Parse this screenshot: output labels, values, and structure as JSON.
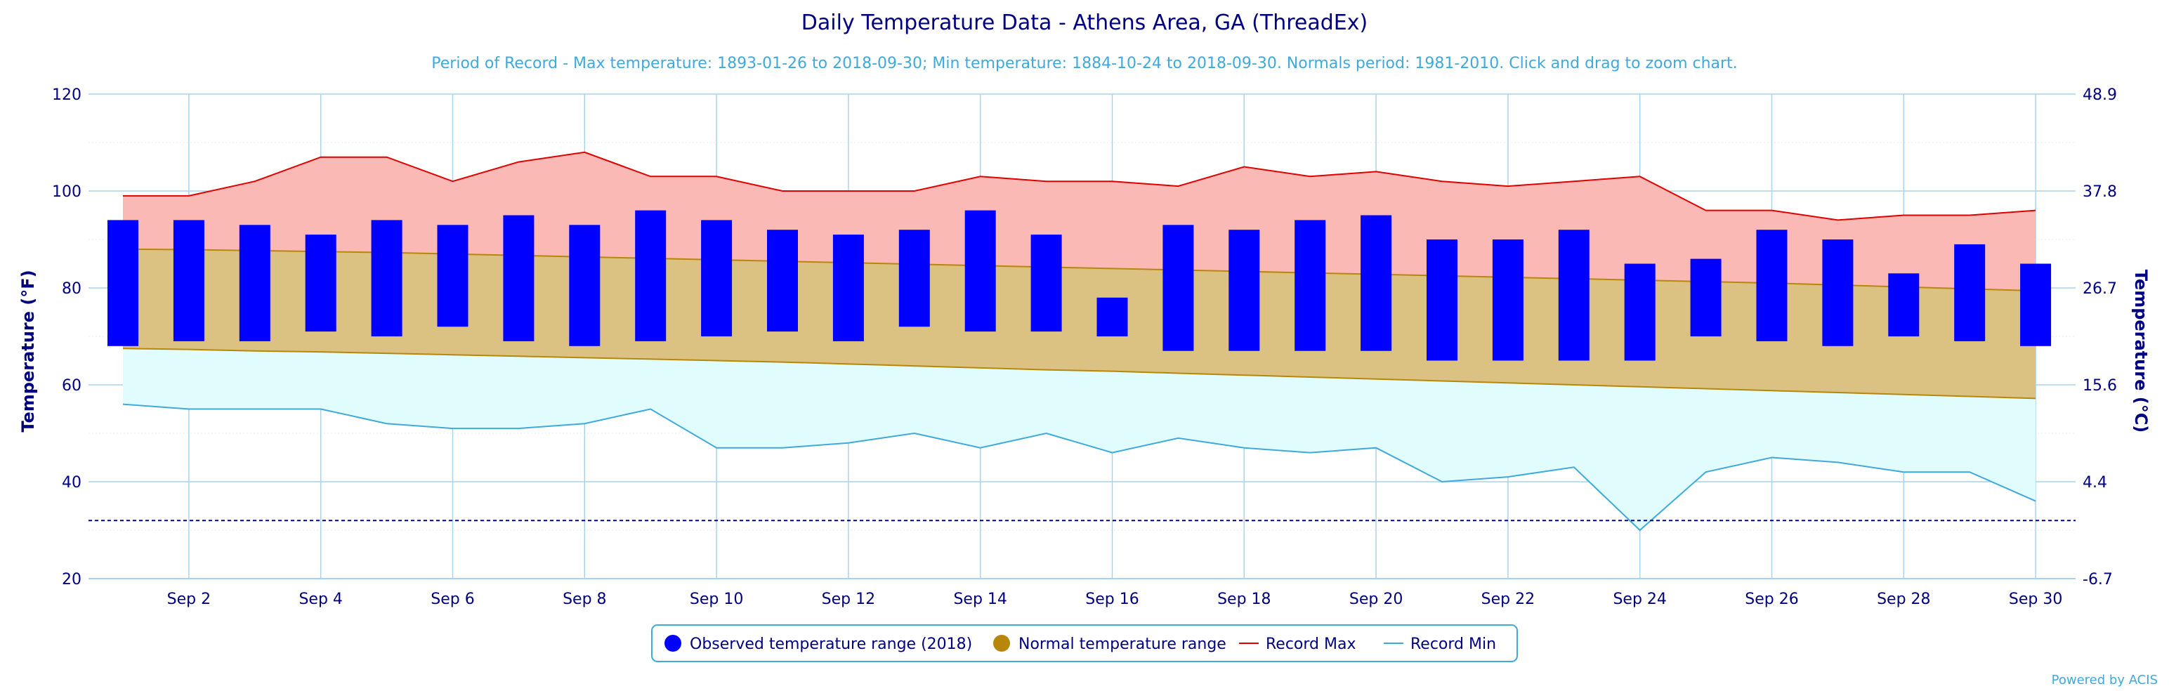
{
  "chart_data": {
    "type": "bar",
    "title": "Daily Temperature Data - Athens Area, GA (ThreadEx)",
    "subtitle": "Period of Record - Max temperature: 1893-01-26 to 2018-09-30; Min temperature: 1884-10-24 to 2018-09-30. Normals period: 1981-2010. Click and drag to zoom chart.",
    "ylabel": "Temperature (°F)",
    "ylabel_right": "Temperature (°C)",
    "ylim": [
      20,
      120
    ],
    "yticks": [
      20,
      40,
      60,
      80,
      100,
      120
    ],
    "yticks_right": [
      "-6.7",
      "4.4",
      "15.6",
      "26.7",
      "37.8",
      "48.9"
    ],
    "days": [
      1,
      2,
      3,
      4,
      5,
      6,
      7,
      8,
      9,
      10,
      11,
      12,
      13,
      14,
      15,
      16,
      17,
      18,
      19,
      20,
      21,
      22,
      23,
      24,
      25,
      26,
      27,
      28,
      29,
      30
    ],
    "xtick_labels": [
      "Sep 2",
      "Sep 4",
      "Sep 6",
      "Sep 8",
      "Sep 10",
      "Sep 12",
      "Sep 14",
      "Sep 16",
      "Sep 18",
      "Sep 20",
      "Sep 22",
      "Sep 24",
      "Sep 26",
      "Sep 28",
      "Sep 30"
    ],
    "xtick_days": [
      2,
      4,
      6,
      8,
      10,
      12,
      14,
      16,
      18,
      20,
      22,
      24,
      26,
      28,
      30
    ],
    "freeze_line_f": 32,
    "grid": true,
    "legend_position": "bottom-center",
    "series": [
      {
        "name": "Observed temperature range (2018)",
        "color": "#0000ff",
        "high": [
          94,
          94,
          93,
          91,
          94,
          93,
          95,
          93,
          96,
          94,
          92,
          91,
          92,
          96,
          91,
          78,
          93,
          92,
          94,
          95,
          90,
          90,
          92,
          85,
          86,
          92,
          90,
          83,
          89,
          85
        ],
        "low": [
          68,
          69,
          69,
          71,
          70,
          72,
          69,
          68,
          69,
          70,
          71,
          69,
          72,
          71,
          71,
          70,
          67,
          67,
          67,
          67,
          65,
          65,
          65,
          65,
          70,
          69,
          68,
          70,
          69,
          68
        ]
      },
      {
        "name": "Normal temperature range",
        "color": "#b8860b",
        "high": [
          88,
          87.9,
          87.7,
          87.5,
          87.3,
          87,
          86.7,
          86.4,
          86.1,
          85.8,
          85.5,
          85.2,
          84.9,
          84.6,
          84.3,
          84,
          83.7,
          83.4,
          83.1,
          82.8,
          82.5,
          82.2,
          81.9,
          81.6,
          81.3,
          81,
          80.6,
          80.2,
          79.8,
          79.4
        ],
        "low": [
          67.5,
          67.3,
          67,
          66.8,
          66.5,
          66.2,
          65.9,
          65.6,
          65.3,
          65,
          64.7,
          64.3,
          63.9,
          63.5,
          63.1,
          62.8,
          62.4,
          62,
          61.6,
          61.2,
          60.8,
          60.4,
          60,
          59.6,
          59.2,
          58.8,
          58.4,
          58,
          57.6,
          57.2
        ]
      },
      {
        "name": "Record Max",
        "color": "#e00000",
        "values": [
          99,
          99,
          102,
          107,
          107,
          102,
          106,
          108,
          103,
          103,
          100,
          100,
          100,
          103,
          102,
          102,
          101,
          105,
          103,
          104,
          102,
          101,
          102,
          103,
          96,
          96,
          94,
          95,
          95,
          96
        ]
      },
      {
        "name": "Record Min",
        "color": "#3fa9dc",
        "values": [
          56,
          55,
          55,
          55,
          52,
          51,
          51,
          52,
          55,
          47,
          47,
          48,
          50,
          47,
          50,
          46,
          49,
          47,
          46,
          47,
          40,
          41,
          43,
          30,
          42,
          45,
          44,
          42,
          42,
          36
        ]
      }
    ]
  },
  "credit": "Powered by ACIS",
  "colors": {
    "record_max_fill": "#fbb9b5",
    "normal_fill": "#dcc282",
    "record_min_fill": "#e0fcfc",
    "grid": "#a9d3ec",
    "axis_text": "#000080"
  }
}
